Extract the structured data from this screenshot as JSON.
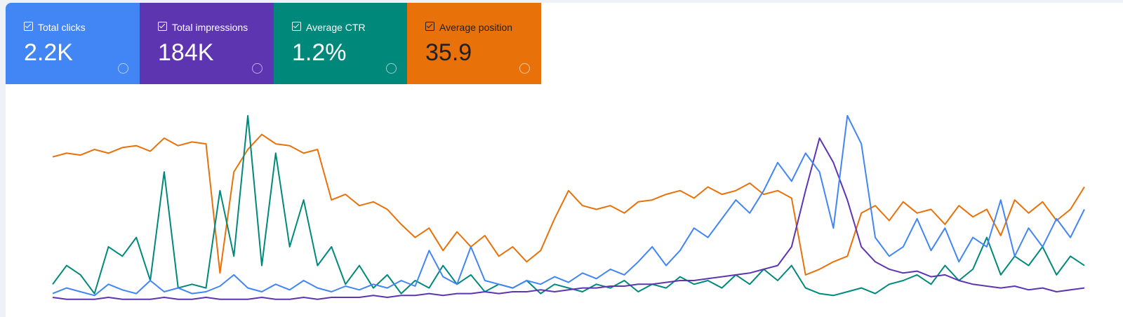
{
  "cards": [
    {
      "label": "Total clicks",
      "value": "2.2K"
    },
    {
      "label": "Total impressions",
      "value": "184K"
    },
    {
      "label": "Average CTR",
      "value": "1.2%"
    },
    {
      "label": "Average position",
      "value": "35.9"
    }
  ],
  "chart_data": {
    "type": "line",
    "ylim": [
      0,
      100
    ],
    "series": [
      {
        "color": "#e8710a",
        "values": [
          78,
          80,
          79,
          82,
          80,
          83,
          84,
          81,
          88,
          84,
          86,
          85,
          16,
          70,
          82,
          90,
          85,
          84,
          80,
          82,
          55,
          58,
          52,
          54,
          50,
          42,
          35,
          40,
          28,
          38,
          30,
          36,
          25,
          30,
          22,
          28,
          45,
          60,
          52,
          50,
          52,
          48,
          54,
          55,
          58,
          60,
          56,
          62,
          58,
          60,
          64,
          58,
          60,
          56,
          15,
          18,
          22,
          25,
          48,
          52,
          44,
          54,
          48,
          50,
          42,
          52,
          46,
          50,
          36,
          55,
          48,
          54,
          44,
          50,
          62
        ]
      },
      {
        "color": "#00897b",
        "values": [
          10,
          20,
          15,
          5,
          30,
          25,
          35,
          12,
          70,
          8,
          10,
          8,
          60,
          25,
          100,
          20,
          80,
          30,
          55,
          20,
          30,
          10,
          20,
          8,
          15,
          5,
          12,
          8,
          20,
          10,
          15,
          6,
          10,
          8,
          12,
          5,
          10,
          8,
          6,
          10,
          8,
          12,
          6,
          10,
          8,
          14,
          10,
          12,
          8,
          15,
          10,
          18,
          12,
          20,
          8,
          5,
          4,
          6,
          8,
          5,
          10,
          12,
          15,
          10,
          20,
          12,
          18,
          35,
          15,
          25,
          20,
          30,
          15,
          25,
          20
        ]
      },
      {
        "color": "#5e35b1",
        "values": [
          3,
          2,
          2,
          2,
          3,
          2,
          2,
          2,
          3,
          2,
          2,
          3,
          2,
          2,
          2,
          3,
          2,
          2,
          3,
          2,
          3,
          3,
          3,
          4,
          3,
          4,
          4,
          5,
          4,
          5,
          5,
          6,
          5,
          6,
          6,
          7,
          6,
          7,
          8,
          8,
          9,
          9,
          10,
          10,
          11,
          12,
          12,
          13,
          14,
          15,
          16,
          18,
          20,
          30,
          60,
          88,
          75,
          55,
          30,
          22,
          18,
          16,
          17,
          14,
          15,
          12,
          10,
          9,
          8,
          9,
          7,
          8,
          6,
          7,
          8
        ]
      },
      {
        "color": "#4285f4",
        "values": [
          5,
          8,
          6,
          4,
          10,
          7,
          5,
          12,
          6,
          8,
          5,
          6,
          9,
          15,
          8,
          6,
          10,
          7,
          12,
          8,
          6,
          9,
          7,
          10,
          8,
          12,
          9,
          28,
          14,
          10,
          30,
          12,
          10,
          8,
          12,
          10,
          14,
          11,
          16,
          13,
          18,
          15,
          22,
          30,
          20,
          28,
          40,
          35,
          45,
          55,
          48,
          60,
          75,
          65,
          80,
          70,
          40,
          100,
          85,
          35,
          25,
          30,
          45,
          28,
          40,
          22,
          35,
          30,
          55,
          25,
          40,
          30,
          45,
          35,
          50
        ]
      }
    ]
  }
}
